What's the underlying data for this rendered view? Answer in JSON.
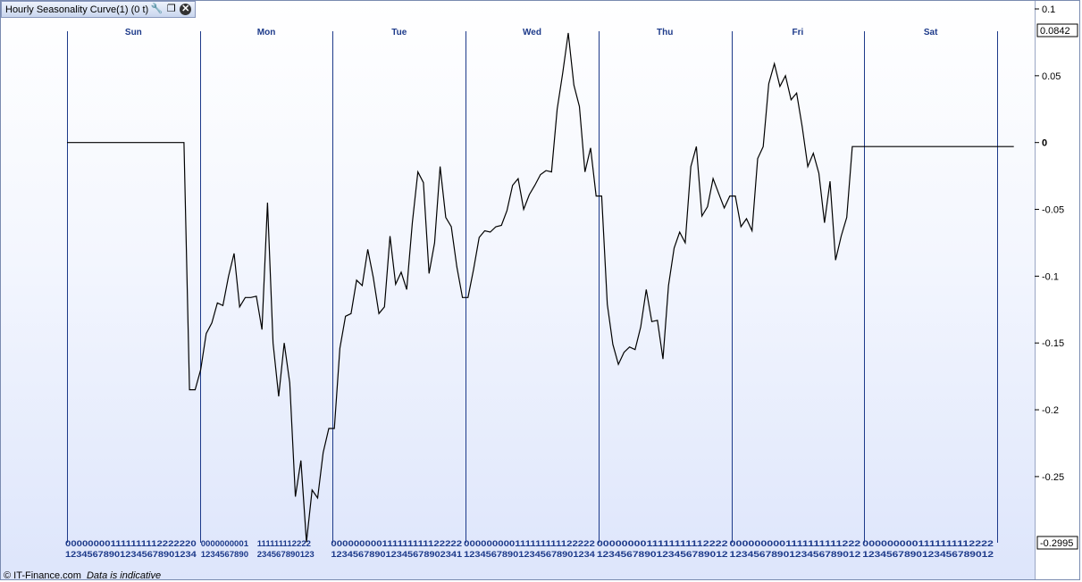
{
  "window": {
    "title": "Hourly Seasonality Curve(1) (0 t)",
    "tool_icons": [
      "wrench-icon",
      "restore-window-icon",
      "close-icon"
    ]
  },
  "footer": {
    "copyright": "© IT-Finance.com",
    "note": "Data is indicative"
  },
  "colors": {
    "line": "#000000",
    "day_divider": "#1d3a8a",
    "label": "#1d3a8a"
  },
  "chart_data": {
    "type": "line",
    "title": "Hourly Seasonality Curve(1) (0 t)",
    "days": [
      "Sun",
      "Mon",
      "Tue",
      "Wed",
      "Thu",
      "Fri",
      "Sat"
    ],
    "hour_tick_rows": {
      "Sun": [
        "000000001111111112222220",
        "123456789012345678901234"
      ],
      "Mon": [
        "0000000001",
        "1234567890"
      ],
      "Mon_row2": "111111112222",
      "Mon_row2b": "234567890123",
      "Tue": [
        "000000000111111111122222",
        "123456789012345678902341"
      ],
      "Wed": [
        "000000000111111111122222",
        "123456789012345678901234"
      ],
      "Thu": [
        "0000000011111111112222",
        "1234567890123456789012"
      ],
      "Fri": [
        "0000000001111111111222",
        "1234567890123456789012"
      ],
      "Sat": [
        "0000000001111111112222",
        "1234567890123456789012"
      ]
    },
    "y_ticks": [
      0.1,
      0.05,
      0,
      -0.05,
      -0.1,
      -0.15,
      -0.2,
      -0.25
    ],
    "y_bold_tick": 0,
    "current_value": "0.0842",
    "min_value": "-0.2995",
    "ylim": [
      -0.2995,
      0.1
    ],
    "x_hours": 168,
    "values": [
      0,
      0,
      0,
      0,
      0,
      0,
      0,
      0,
      0,
      0,
      0,
      0,
      0,
      0,
      0,
      0,
      0,
      0,
      0,
      0,
      0,
      0,
      -0.185,
      -0.185,
      -0.17,
      -0.143,
      -0.135,
      -0.12,
      -0.122,
      -0.1,
      -0.083,
      -0.123,
      -0.116,
      -0.116,
      -0.115,
      -0.14,
      -0.045,
      -0.15,
      -0.19,
      -0.15,
      -0.18,
      -0.265,
      -0.238,
      -0.299,
      -0.26,
      -0.266,
      -0.232,
      -0.214,
      -0.214,
      -0.154,
      -0.13,
      -0.128,
      -0.103,
      -0.107,
      -0.08,
      -0.101,
      -0.128,
      -0.123,
      -0.07,
      -0.106,
      -0.097,
      -0.11,
      -0.06,
      -0.022,
      -0.03,
      -0.098,
      -0.075,
      -0.018,
      -0.056,
      -0.063,
      -0.093,
      -0.116,
      -0.116,
      -0.095,
      -0.071,
      -0.066,
      -0.067,
      -0.063,
      -0.062,
      -0.051,
      -0.032,
      -0.027,
      -0.05,
      -0.039,
      -0.032,
      -0.024,
      -0.021,
      -0.022,
      0.025,
      0.052,
      0.082,
      0.043,
      0.027,
      -0.022,
      -0.004,
      -0.04,
      -0.04,
      -0.121,
      -0.151,
      -0.166,
      -0.157,
      -0.153,
      -0.155,
      -0.138,
      -0.11,
      -0.134,
      -0.133,
      -0.162,
      -0.107,
      -0.079,
      -0.067,
      -0.075,
      -0.018,
      -0.003,
      -0.055,
      -0.048,
      -0.027,
      -0.038,
      -0.049,
      -0.04,
      -0.04,
      -0.063,
      -0.057,
      -0.066,
      -0.012,
      -0.003,
      0.044,
      0.059,
      0.042,
      0.05,
      0.032,
      0.037,
      0.012,
      -0.018,
      -0.008,
      -0.023,
      -0.06,
      -0.029,
      -0.088,
      -0.07,
      -0.056,
      -0.003,
      -0.003,
      -0.003,
      -0.003,
      -0.003,
      -0.003,
      -0.003,
      -0.003,
      -0.003,
      -0.003,
      -0.003,
      -0.003,
      -0.003,
      -0.003,
      -0.003,
      -0.003,
      -0.003,
      -0.003,
      -0.003,
      -0.003,
      -0.003,
      -0.003,
      -0.003,
      -0.003,
      -0.003,
      -0.003,
      -0.003,
      -0.003,
      -0.003,
      -0.003
    ]
  }
}
